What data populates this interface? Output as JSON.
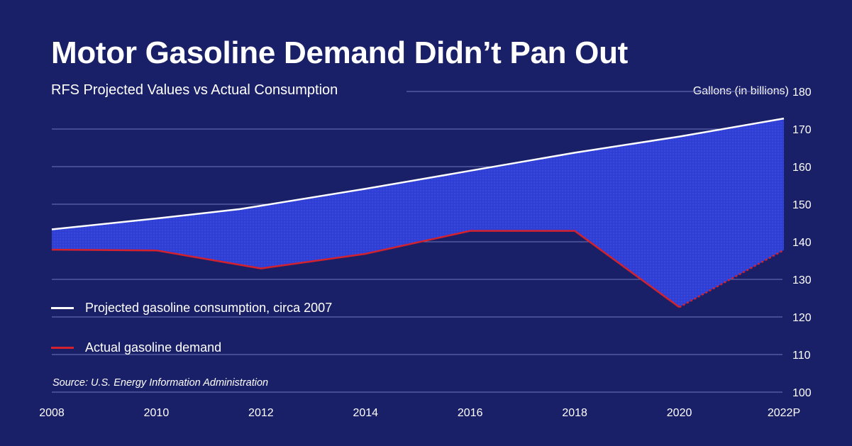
{
  "title": "Motor Gasoline Demand Didn’t Pan Out",
  "subtitle": "RFS Projected Values vs Actual Consumption",
  "source": "Source: U.S. Energy Information Administration",
  "colors": {
    "background": "#1a2068",
    "projected": "#ffffff",
    "actual": "#d3212d",
    "fill": "#2f3fd6"
  },
  "chart_data": {
    "type": "line",
    "title": "Motor Gasoline Demand Didn’t Pan Out",
    "subtitle": "RFS Projected Values vs Actual Consumption",
    "ylabel": "Gallons (in billions)",
    "ylim": [
      100,
      180
    ],
    "yticks": [
      100,
      110,
      120,
      130,
      140,
      150,
      160,
      170,
      180
    ],
    "xlim": [
      2008,
      2022
    ],
    "xticks": [
      2008,
      2010,
      2012,
      2014,
      2016,
      2018,
      2020,
      2022
    ],
    "xtick_labels": [
      "2008",
      "2010",
      "2012",
      "2014",
      "2016",
      "2018",
      "2020",
      "2022P"
    ],
    "grid": true,
    "legend_position": "lower-left",
    "shaded_area_between_series": true,
    "series": [
      {
        "name": "Projected gasoline consumption, circa 2007",
        "color": "#ffffff",
        "x": [
          2008,
          2010,
          2011.6,
          2014,
          2016,
          2018,
          2020,
          2022
        ],
        "y": [
          143.3,
          146.2,
          148.7,
          154.1,
          158.9,
          163.7,
          168.0,
          172.8
        ]
      },
      {
        "name": "Actual gasoline demand",
        "color": "#d3212d",
        "x": [
          2008,
          2010,
          2012,
          2014,
          2016,
          2018,
          2020,
          2022
        ],
        "y": [
          137.9,
          137.7,
          132.9,
          136.8,
          142.9,
          142.9,
          122.6,
          137.8
        ],
        "projected_from_index": 6
      }
    ]
  }
}
